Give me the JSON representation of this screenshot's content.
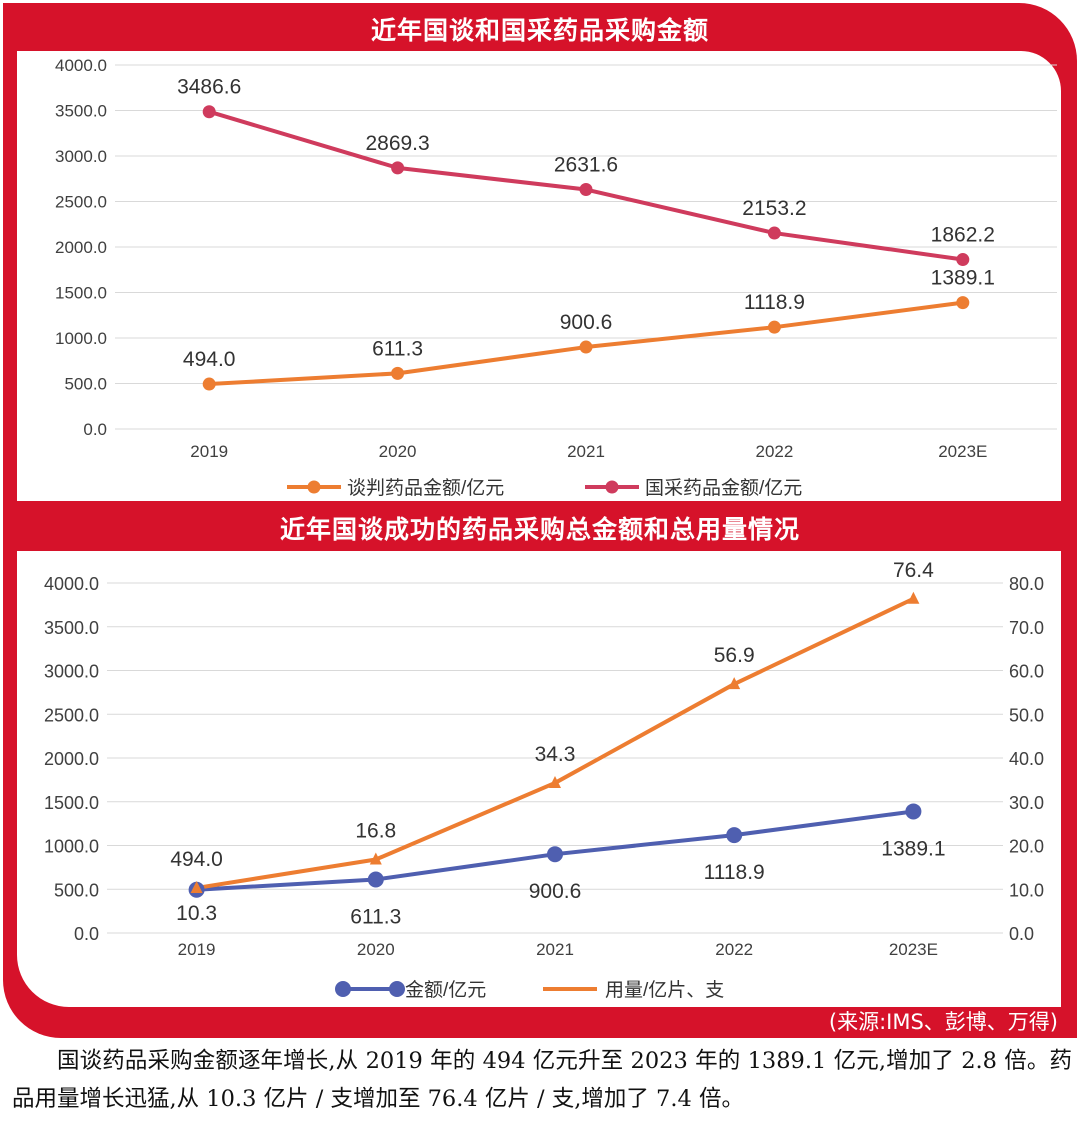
{
  "chart_data": [
    {
      "type": "line",
      "title": "近年国谈和国采药品采购金额",
      "categories": [
        "2019",
        "2020",
        "2021",
        "2022",
        "2023E"
      ],
      "y_ticks": [
        "4000.0",
        "3500.0",
        "3000.0",
        "2500.0",
        "2000.0",
        "1500.0",
        "1000.0",
        "500.0",
        "0.0"
      ],
      "ylim": [
        0,
        4000
      ],
      "grid": true,
      "legend": "bottom",
      "series": [
        {
          "name": "谈判药品金额/亿元",
          "color": "#ed7d31",
          "values": [
            494.0,
            611.3,
            900.6,
            1118.9,
            1389.1
          ],
          "labels": [
            "494.0",
            "611.3",
            "900.6",
            "1118.9",
            "1389.1"
          ]
        },
        {
          "name": "国采药品金额/亿元",
          "color": "#cf3b5d",
          "values": [
            3486.6,
            2869.3,
            2631.6,
            2153.2,
            1862.2
          ],
          "labels": [
            "3486.6",
            "2869.3",
            "2631.6",
            "2153.2",
            "1862.2"
          ]
        }
      ]
    },
    {
      "type": "line",
      "title": "近年国谈成功的药品采购总金额和总用量情况",
      "categories": [
        "2019",
        "2020",
        "2021",
        "2022",
        "2023E"
      ],
      "y_ticks": [
        "4000.0",
        "3500.0",
        "3000.0",
        "2500.0",
        "2000.0",
        "1500.0",
        "1000.0",
        "500.0",
        "0.0"
      ],
      "y2_ticks": [
        "80.0",
        "70.0",
        "60.0",
        "50.0",
        "40.0",
        "30.0",
        "20.0",
        "10.0",
        "0.0"
      ],
      "ylim": [
        0,
        4000
      ],
      "y2lim": [
        0,
        80
      ],
      "grid": true,
      "legend": "bottom",
      "series": [
        {
          "name": "金额/亿元",
          "color": "#4f5fb0",
          "axis": "left",
          "values": [
            494.0,
            611.3,
            900.6,
            1118.9,
            1389.1
          ],
          "labels": [
            "494.0",
            "611.3",
            "900.6",
            "1118.9",
            "1389.1"
          ]
        },
        {
          "name": "用量/亿片、支",
          "color": "#ed7d31",
          "axis": "right",
          "values": [
            10.3,
            16.8,
            34.3,
            56.9,
            76.4
          ],
          "labels": [
            "10.3",
            "16.8",
            "34.3",
            "56.9",
            "76.4"
          ]
        }
      ]
    }
  ],
  "source": "(来源:IMS、彭博、万得)",
  "caption": "国谈药品采购金额逐年增长,从 2019 年的 494 亿元升至 2023 年的 1389.1 亿元,增加了 2.8 倍。药品用量增长迅猛,从 10.3 亿片 / 支增加至 76.4 亿片 / 支,增加了 7.4 倍。"
}
